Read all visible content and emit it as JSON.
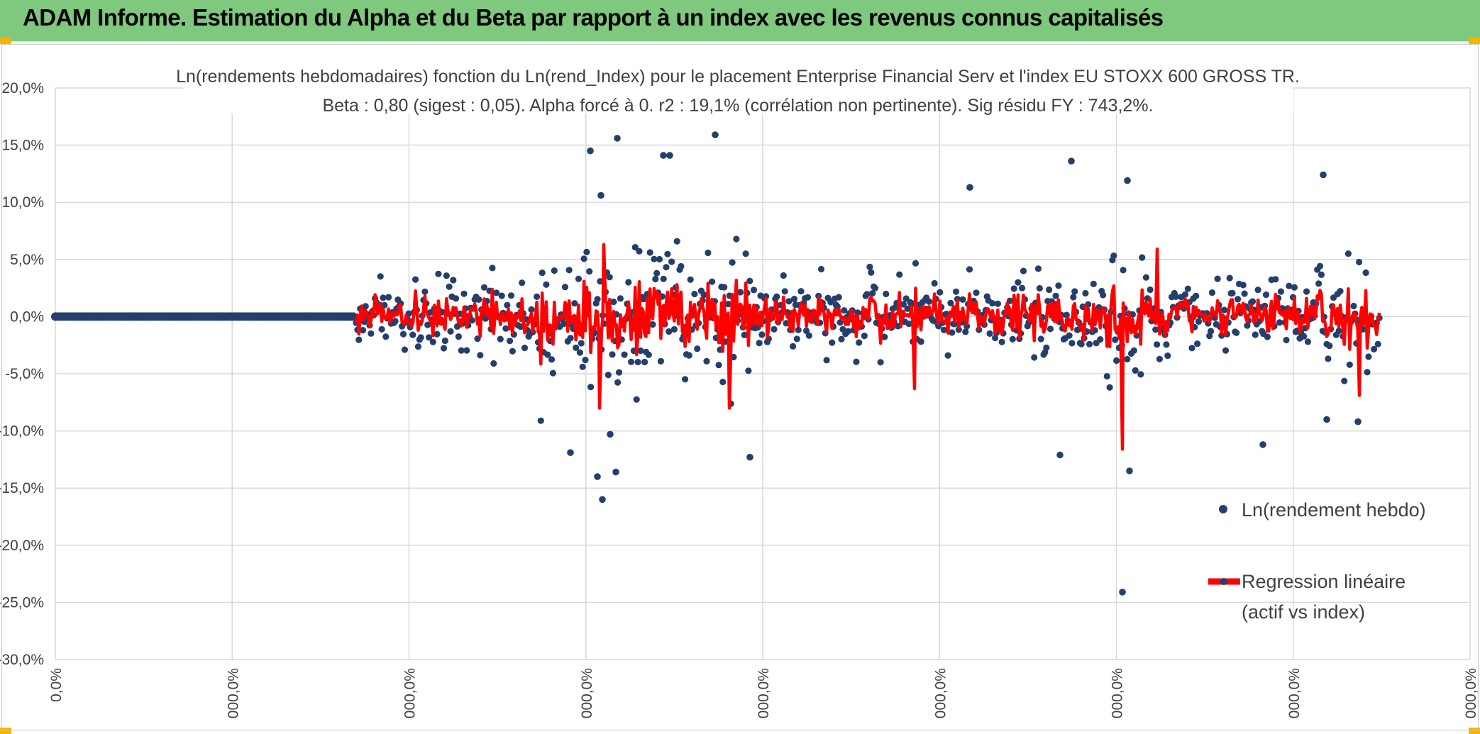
{
  "banner": {
    "title": "ADAM Informe. Estimation du Alpha et du Beta par rapport à un index avec les revenus connus capitalisés"
  },
  "chart_data": {
    "type": "scatter",
    "title_line1": "Ln(rendements hebdomadaires) fonction du Ln(rend_Index) pour le placement Enterprise Financial Serv et l'index EU STOXX 600 GROSS TR.",
    "title_line2": "Beta : 0,80 (sigest : 0,05). Alpha forcé à 0. r2 : 19,1% (corrélation non pertinente). Sig résidu FY : 743,2%.",
    "y_ticks": [
      "20,0%",
      "15,0%",
      "10,0%",
      "5,0%",
      "0,0%",
      "-5,0%",
      "-10,0%",
      "-15,0%",
      "-20,0%",
      "-25,0%",
      "-30,0%"
    ],
    "ylim": [
      -30,
      20
    ],
    "x_ticks": [
      "0,0%",
      "000,0%",
      "000,0%",
      "000,0%",
      "000,0%",
      "000,0%",
      "000,0%",
      "000,0%",
      "000,0%"
    ],
    "grid": true,
    "legend_position": "right",
    "series": [
      {
        "name": "Ln(rendement hebdo)",
        "color": "#243f6e",
        "marker": "circle",
        "notable_points": [
          15.9,
          14.5,
          15.6,
          14.1,
          14.1,
          13.6,
          11.9,
          12.4,
          11.3,
          10.6,
          -24.1,
          -16.0,
          -14.0,
          -13.6,
          -13.5,
          -12.3,
          -12.1,
          -11.9,
          -11.2,
          -10.3,
          -9.2,
          -9.0
        ]
      },
      {
        "name": "Regression linéaire\n(actif vs index)",
        "color": "#ff0000",
        "marker": "line"
      }
    ],
    "legend": {
      "series1_label": "Ln(rendement hebdo)",
      "series2_label_line1": "Regression linéaire",
      "series2_label_line2": "(actif vs index)"
    }
  }
}
